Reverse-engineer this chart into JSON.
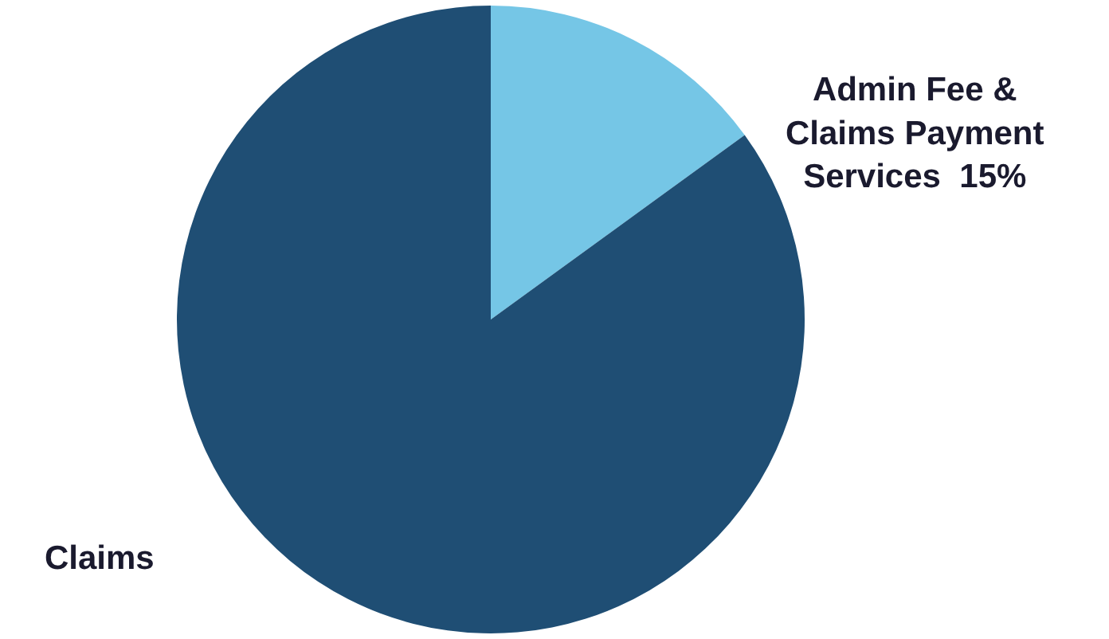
{
  "chart_data": {
    "type": "pie",
    "categories": [
      "Admin Fee & Claims Payment Services",
      "Claims"
    ],
    "values": [
      15,
      85
    ],
    "value_labels": [
      "15%",
      null
    ],
    "colors": [
      "#75c6e6",
      "#1f4e74"
    ]
  }
}
